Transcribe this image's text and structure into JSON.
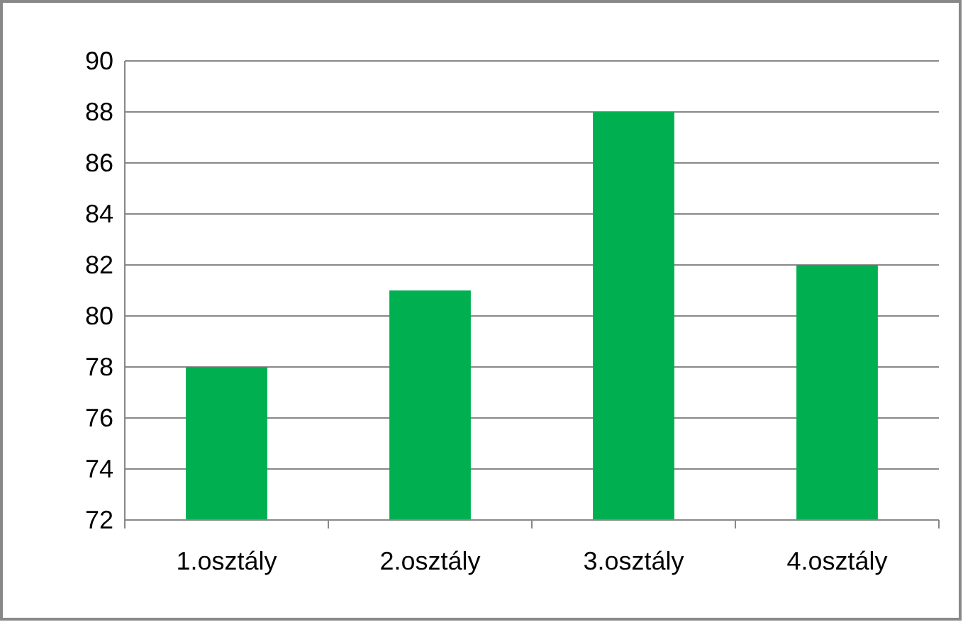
{
  "chart_data": {
    "type": "bar",
    "categories": [
      "1.osztály",
      "2.osztály",
      "3.osztály",
      "4.osztály"
    ],
    "values": [
      78,
      81,
      88,
      82
    ],
    "color": "#00b050",
    "ylim": [
      72,
      90
    ],
    "yticks": [
      72,
      74,
      76,
      78,
      80,
      82,
      84,
      86,
      88,
      90
    ],
    "grid": "y"
  }
}
